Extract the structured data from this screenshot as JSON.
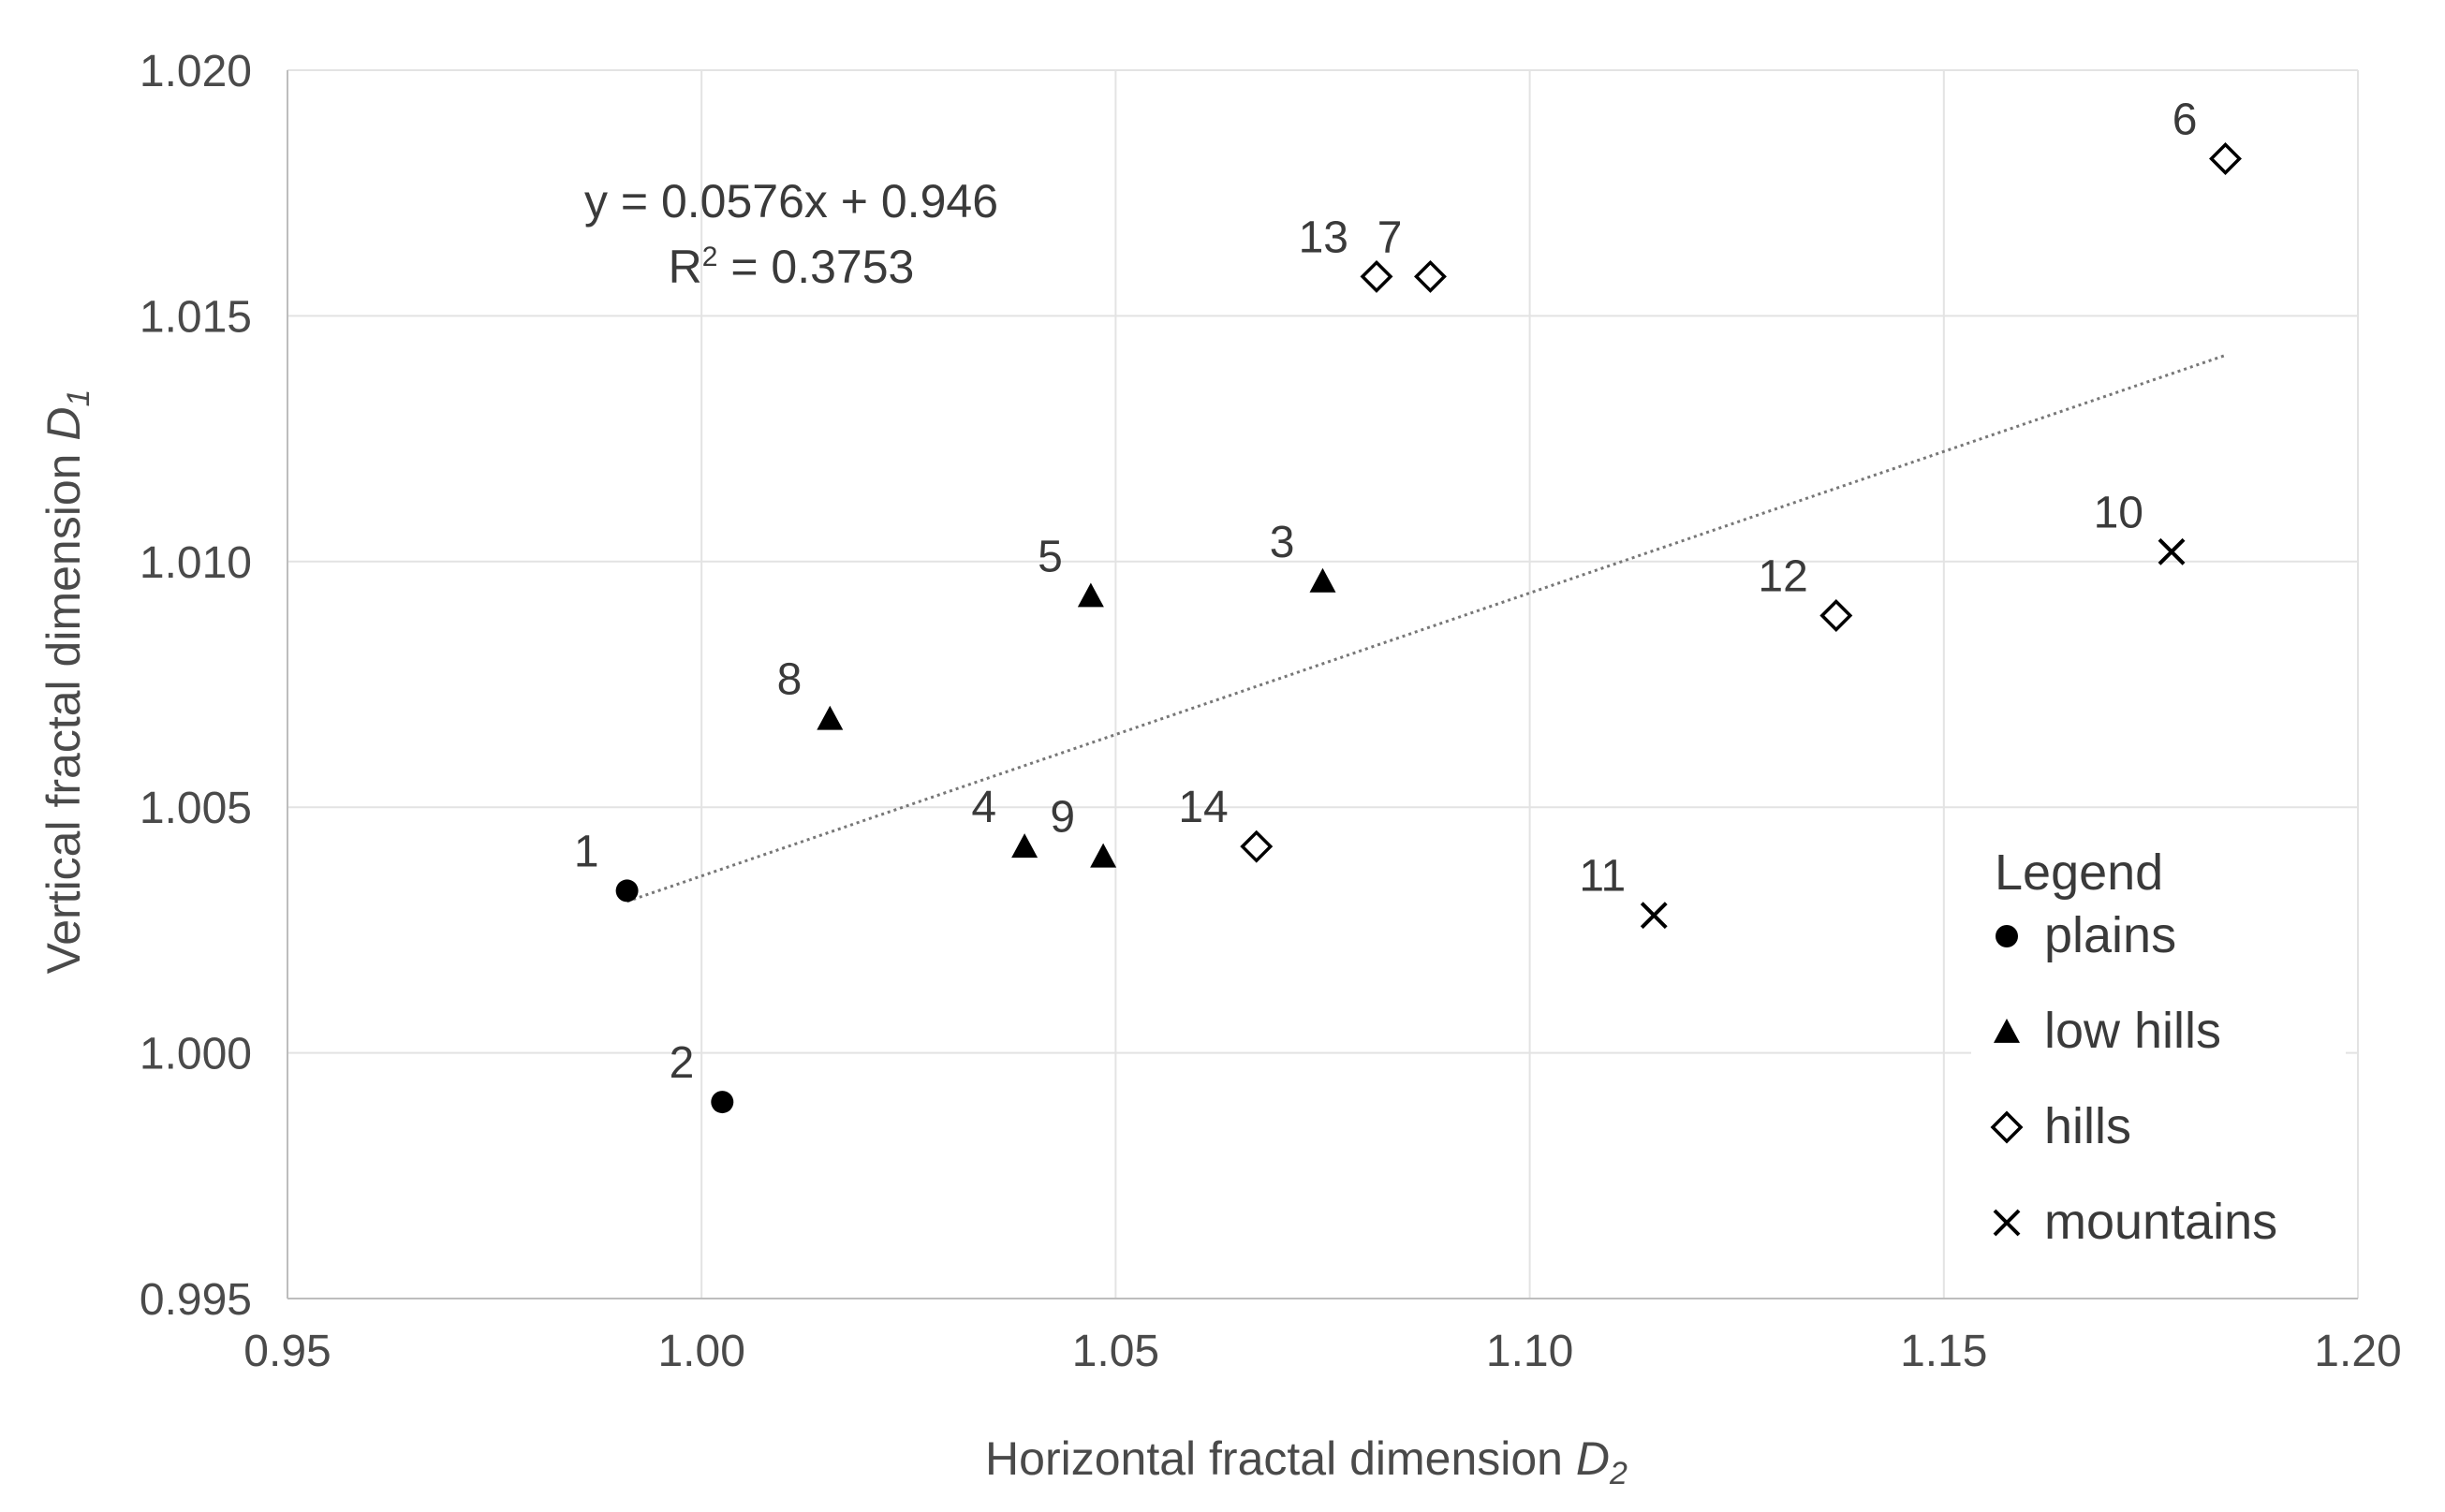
{
  "chart_data": {
    "type": "scatter",
    "xlabel": "Horizontal fractal dimension",
    "xlabel_var": "D",
    "xlabel_sub": "2",
    "ylabel": "Vertical fractal dimension",
    "ylabel_var": "D",
    "ylabel_sub": "1",
    "xlim": [
      0.95,
      1.2
    ],
    "ylim": [
      0.995,
      1.02
    ],
    "x_ticks": [
      "0.95",
      "1.00",
      "1.05",
      "1.10",
      "1.15",
      "1.20"
    ],
    "y_ticks": [
      "0.995",
      "1.000",
      "1.005",
      "1.010",
      "1.015",
      "1.020"
    ],
    "grid": true,
    "trendline": {
      "equation": "y = 0.0576x + 0.946",
      "r_squared_label": "R",
      "r_squared_sup": "2",
      "r_squared_value": " = 0.3753",
      "slope": 0.0576,
      "intercept": 0.946,
      "x_range": [
        0.991,
        1.184
      ]
    },
    "legend": {
      "title": "Legend",
      "position": "bottom-right",
      "items": [
        {
          "key": "plains",
          "label": "plains",
          "marker": "circle"
        },
        {
          "key": "low_hills",
          "label": "low hills",
          "marker": "triangle"
        },
        {
          "key": "hills",
          "label": "hills",
          "marker": "diamond"
        },
        {
          "key": "mountains",
          "label": "mountains",
          "marker": "cross"
        }
      ]
    },
    "points": [
      {
        "label": "1",
        "x": 0.991,
        "y": 1.0033,
        "series": "plains"
      },
      {
        "label": "2",
        "x": 1.0025,
        "y": 0.999,
        "series": "plains"
      },
      {
        "label": "3",
        "x": 1.075,
        "y": 1.0096,
        "series": "low_hills"
      },
      {
        "label": "4",
        "x": 1.039,
        "y": 1.0042,
        "series": "low_hills"
      },
      {
        "label": "5",
        "x": 1.047,
        "y": 1.0093,
        "series": "low_hills"
      },
      {
        "label": "6",
        "x": 1.184,
        "y": 1.0182,
        "series": "hills"
      },
      {
        "label": "7",
        "x": 1.088,
        "y": 1.0158,
        "series": "hills"
      },
      {
        "label": "8",
        "x": 1.0155,
        "y": 1.0068,
        "series": "low_hills"
      },
      {
        "label": "9",
        "x": 1.0485,
        "y": 1.004,
        "series": "low_hills"
      },
      {
        "label": "10",
        "x": 1.1775,
        "y": 1.0102,
        "series": "mountains"
      },
      {
        "label": "11",
        "x": 1.115,
        "y": 1.0028,
        "series": "mountains"
      },
      {
        "label": "12",
        "x": 1.137,
        "y": 1.0089,
        "series": "hills"
      },
      {
        "label": "13",
        "x": 1.0815,
        "y": 1.0158,
        "series": "hills"
      },
      {
        "label": "14",
        "x": 1.067,
        "y": 1.0042,
        "series": "hills"
      }
    ]
  },
  "colors": {
    "marker": "#000000",
    "trendline": "#777777",
    "grid": "#e3e3e3",
    "text": "#4a4a4a"
  }
}
